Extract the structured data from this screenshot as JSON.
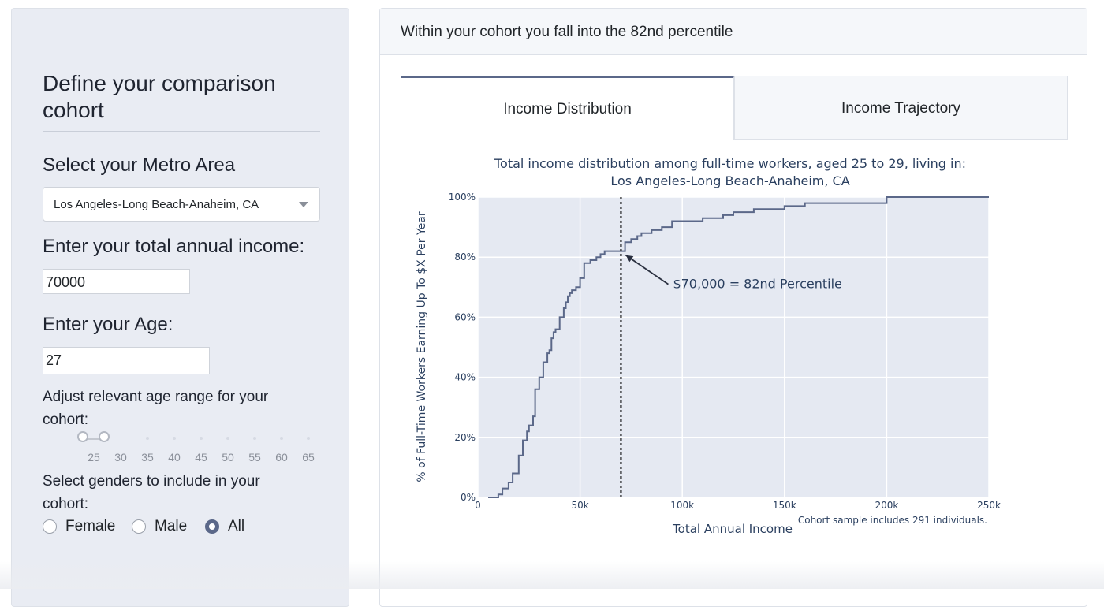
{
  "sidebar": {
    "title": "Define your comparison cohort",
    "metro_label": "Select your Metro Area",
    "metro_value": "Los Angeles-Long Beach-Anaheim, CA",
    "income_label": "Enter your total annual income:",
    "income_value": "70000",
    "age_label": "Enter your Age:",
    "age_value": "27",
    "age_range_label": "Adjust relevant age range for your cohort:",
    "age_range": {
      "marks": [
        "25",
        "30",
        "35",
        "40",
        "45",
        "50",
        "55",
        "60",
        "65"
      ],
      "selected_min": 25,
      "selected_max": 29
    },
    "gender_label": "Select genders to include in your cohort:",
    "gender_options": [
      {
        "label": "Female",
        "checked": false
      },
      {
        "label": "Male",
        "checked": false
      },
      {
        "label": "All",
        "checked": true
      }
    ]
  },
  "panel": {
    "header": "Within your cohort you fall into the 82nd percentile",
    "tabs": [
      {
        "label": "Income Distribution",
        "active": true
      },
      {
        "label": "Income Trajectory",
        "active": false
      }
    ]
  },
  "chart_data": {
    "type": "line",
    "title_line1": "Total income distribution among full-time workers, aged 25 to 29, living in:",
    "title_line2": "Los Angeles-Long Beach-Anaheim, CA",
    "xlabel": "Total Annual Income",
    "ylabel": "% of Full-Time Workers Earning Up To $X Per Year",
    "xlim": [
      0,
      250000
    ],
    "ylim": [
      0,
      100
    ],
    "x_ticks": [
      0,
      50000,
      100000,
      150000,
      200000,
      250000
    ],
    "x_tick_labels": [
      "0",
      "50k",
      "100k",
      "150k",
      "200k",
      "250k"
    ],
    "y_ticks": [
      0,
      20,
      40,
      60,
      80,
      100
    ],
    "y_tick_labels": [
      "0%",
      "20%",
      "40%",
      "60%",
      "80%",
      "100%"
    ],
    "grid": true,
    "series": [
      {
        "x": [
          5000,
          10000,
          12000,
          15000,
          17000,
          20000,
          22000,
          24000,
          25000,
          27000,
          28000,
          30000,
          32000,
          34000,
          35000,
          36000,
          37000,
          38000,
          40000,
          42000,
          43000,
          44000,
          45000,
          46000,
          48000,
          50000,
          52000,
          55000,
          58000,
          60000,
          62000,
          63000,
          65000,
          67000,
          70000,
          72000,
          75000,
          78000,
          80000,
          85000,
          90000,
          95000,
          100000,
          110000,
          120000,
          125000,
          130000,
          135000,
          140000,
          150000,
          160000,
          175000,
          190000,
          200000,
          210000,
          220000,
          250000
        ],
        "y": [
          0,
          1,
          3,
          5,
          8,
          14,
          19,
          22,
          24,
          27,
          36,
          40,
          45,
          48,
          49,
          53,
          55,
          56,
          60,
          63,
          65,
          67,
          68,
          69,
          70,
          73,
          78,
          79,
          80,
          81,
          82,
          82,
          82,
          82,
          82,
          85,
          86,
          87,
          88,
          89,
          90,
          92,
          92,
          93,
          94,
          95,
          95,
          96,
          96,
          97,
          98,
          98,
          98,
          100,
          100,
          100,
          100
        ]
      }
    ],
    "marker": {
      "x": 70000,
      "label": "$70,000 = 82nd Percentile"
    },
    "footnote": "Cohort sample includes 291 individuals."
  }
}
